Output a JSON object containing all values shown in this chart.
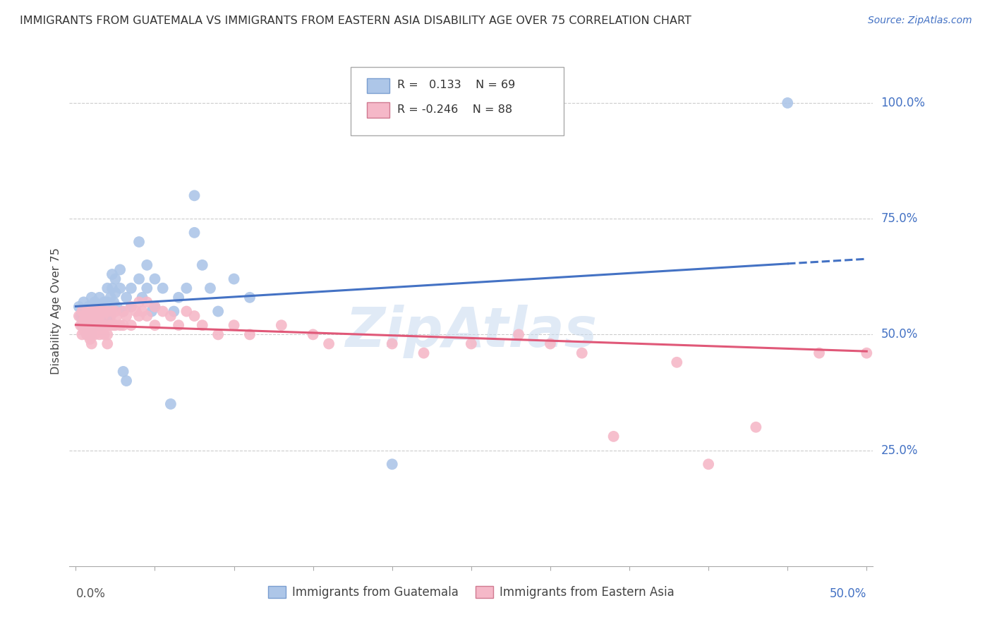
{
  "title": "IMMIGRANTS FROM GUATEMALA VS IMMIGRANTS FROM EASTERN ASIA DISABILITY AGE OVER 75 CORRELATION CHART",
  "source": "Source: ZipAtlas.com",
  "ylabel": "Disability Age Over 75",
  "legend_blue_label": "Immigrants from Guatemala",
  "legend_pink_label": "Immigrants from Eastern Asia",
  "blue_color": "#adc6e8",
  "blue_line_color": "#4472c4",
  "pink_color": "#f5b8c8",
  "pink_line_color": "#e05878",
  "watermark": "ZipAtlas",
  "xlim": [
    0.0,
    0.5
  ],
  "ylim": [
    0.0,
    1.05
  ],
  "blue_scatter": [
    [
      0.002,
      0.56
    ],
    [
      0.003,
      0.54
    ],
    [
      0.004,
      0.52
    ],
    [
      0.005,
      0.57
    ],
    [
      0.005,
      0.53
    ],
    [
      0.006,
      0.55
    ],
    [
      0.007,
      0.52
    ],
    [
      0.007,
      0.5
    ],
    [
      0.008,
      0.56
    ],
    [
      0.008,
      0.54
    ],
    [
      0.009,
      0.52
    ],
    [
      0.01,
      0.58
    ],
    [
      0.01,
      0.55
    ],
    [
      0.01,
      0.53
    ],
    [
      0.01,
      0.5
    ],
    [
      0.012,
      0.57
    ],
    [
      0.012,
      0.54
    ],
    [
      0.013,
      0.56
    ],
    [
      0.013,
      0.52
    ],
    [
      0.014,
      0.55
    ],
    [
      0.015,
      0.58
    ],
    [
      0.015,
      0.55
    ],
    [
      0.015,
      0.52
    ],
    [
      0.016,
      0.56
    ],
    [
      0.017,
      0.54
    ],
    [
      0.018,
      0.57
    ],
    [
      0.018,
      0.53
    ],
    [
      0.019,
      0.55
    ],
    [
      0.02,
      0.6
    ],
    [
      0.02,
      0.57
    ],
    [
      0.02,
      0.54
    ],
    [
      0.021,
      0.56
    ],
    [
      0.022,
      0.58
    ],
    [
      0.022,
      0.54
    ],
    [
      0.023,
      0.63
    ],
    [
      0.023,
      0.6
    ],
    [
      0.024,
      0.57
    ],
    [
      0.025,
      0.62
    ],
    [
      0.025,
      0.59
    ],
    [
      0.026,
      0.56
    ],
    [
      0.028,
      0.64
    ],
    [
      0.028,
      0.6
    ],
    [
      0.03,
      0.55
    ],
    [
      0.03,
      0.42
    ],
    [
      0.032,
      0.58
    ],
    [
      0.032,
      0.4
    ],
    [
      0.035,
      0.6
    ],
    [
      0.035,
      0.56
    ],
    [
      0.04,
      0.7
    ],
    [
      0.04,
      0.62
    ],
    [
      0.042,
      0.58
    ],
    [
      0.045,
      0.65
    ],
    [
      0.045,
      0.6
    ],
    [
      0.048,
      0.55
    ],
    [
      0.05,
      0.62
    ],
    [
      0.05,
      0.56
    ],
    [
      0.055,
      0.6
    ],
    [
      0.06,
      0.35
    ],
    [
      0.062,
      0.55
    ],
    [
      0.065,
      0.58
    ],
    [
      0.07,
      0.6
    ],
    [
      0.075,
      0.8
    ],
    [
      0.075,
      0.72
    ],
    [
      0.08,
      0.65
    ],
    [
      0.085,
      0.6
    ],
    [
      0.09,
      0.55
    ],
    [
      0.1,
      0.62
    ],
    [
      0.11,
      0.58
    ],
    [
      0.2,
      0.22
    ],
    [
      0.45,
      1.0
    ]
  ],
  "pink_scatter": [
    [
      0.002,
      0.54
    ],
    [
      0.003,
      0.52
    ],
    [
      0.004,
      0.55
    ],
    [
      0.004,
      0.5
    ],
    [
      0.005,
      0.53
    ],
    [
      0.005,
      0.51
    ],
    [
      0.006,
      0.54
    ],
    [
      0.006,
      0.52
    ],
    [
      0.007,
      0.55
    ],
    [
      0.007,
      0.53
    ],
    [
      0.007,
      0.5
    ],
    [
      0.008,
      0.54
    ],
    [
      0.008,
      0.52
    ],
    [
      0.008,
      0.5
    ],
    [
      0.009,
      0.55
    ],
    [
      0.009,
      0.52
    ],
    [
      0.009,
      0.49
    ],
    [
      0.01,
      0.54
    ],
    [
      0.01,
      0.52
    ],
    [
      0.01,
      0.5
    ],
    [
      0.01,
      0.48
    ],
    [
      0.011,
      0.54
    ],
    [
      0.011,
      0.52
    ],
    [
      0.012,
      0.55
    ],
    [
      0.012,
      0.52
    ],
    [
      0.012,
      0.5
    ],
    [
      0.013,
      0.54
    ],
    [
      0.013,
      0.51
    ],
    [
      0.014,
      0.55
    ],
    [
      0.014,
      0.52
    ],
    [
      0.015,
      0.54
    ],
    [
      0.015,
      0.52
    ],
    [
      0.015,
      0.5
    ],
    [
      0.016,
      0.55
    ],
    [
      0.016,
      0.52
    ],
    [
      0.017,
      0.54
    ],
    [
      0.017,
      0.52
    ],
    [
      0.018,
      0.55
    ],
    [
      0.018,
      0.52
    ],
    [
      0.018,
      0.5
    ],
    [
      0.02,
      0.55
    ],
    [
      0.02,
      0.52
    ],
    [
      0.02,
      0.5
    ],
    [
      0.02,
      0.48
    ],
    [
      0.022,
      0.54
    ],
    [
      0.022,
      0.52
    ],
    [
      0.023,
      0.55
    ],
    [
      0.024,
      0.52
    ],
    [
      0.025,
      0.55
    ],
    [
      0.025,
      0.52
    ],
    [
      0.026,
      0.54
    ],
    [
      0.028,
      0.52
    ],
    [
      0.03,
      0.55
    ],
    [
      0.03,
      0.52
    ],
    [
      0.032,
      0.54
    ],
    [
      0.035,
      0.56
    ],
    [
      0.035,
      0.52
    ],
    [
      0.038,
      0.55
    ],
    [
      0.04,
      0.57
    ],
    [
      0.04,
      0.54
    ],
    [
      0.042,
      0.55
    ],
    [
      0.045,
      0.57
    ],
    [
      0.045,
      0.54
    ],
    [
      0.05,
      0.56
    ],
    [
      0.05,
      0.52
    ],
    [
      0.055,
      0.55
    ],
    [
      0.06,
      0.54
    ],
    [
      0.065,
      0.52
    ],
    [
      0.07,
      0.55
    ],
    [
      0.075,
      0.54
    ],
    [
      0.08,
      0.52
    ],
    [
      0.09,
      0.5
    ],
    [
      0.1,
      0.52
    ],
    [
      0.11,
      0.5
    ],
    [
      0.13,
      0.52
    ],
    [
      0.15,
      0.5
    ],
    [
      0.16,
      0.48
    ],
    [
      0.2,
      0.48
    ],
    [
      0.22,
      0.46
    ],
    [
      0.25,
      0.48
    ],
    [
      0.28,
      0.5
    ],
    [
      0.3,
      0.48
    ],
    [
      0.32,
      0.46
    ],
    [
      0.34,
      0.28
    ],
    [
      0.38,
      0.44
    ],
    [
      0.4,
      0.22
    ],
    [
      0.43,
      0.3
    ],
    [
      0.47,
      0.46
    ],
    [
      0.5,
      0.46
    ]
  ]
}
